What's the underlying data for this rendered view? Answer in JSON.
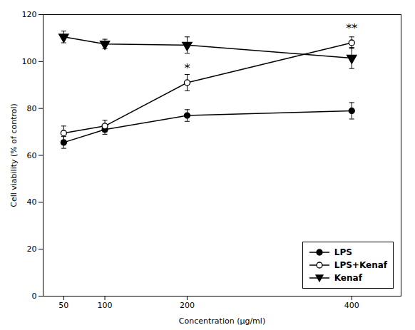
{
  "chart_data": {
    "type": "line",
    "x": [
      50,
      100,
      200,
      400
    ],
    "series": [
      {
        "name": "LPS",
        "values": [
          65.5,
          71.0,
          77.0,
          79.0
        ],
        "errors": [
          2.5,
          2.0,
          2.5,
          3.5
        ],
        "marker": "circle",
        "color": "#000000"
      },
      {
        "name": "LPS+Kenaf",
        "values": [
          69.5,
          72.5,
          91.0,
          108.0
        ],
        "errors": [
          3.0,
          2.5,
          3.5,
          2.5
        ],
        "marker": "open-circle",
        "color": "#000000"
      },
      {
        "name": "Kenaf",
        "values": [
          110.5,
          107.5,
          107.0,
          101.5
        ],
        "errors": [
          2.5,
          2.0,
          3.5,
          4.5
        ],
        "marker": "triangle-down",
        "color": "#000000"
      }
    ],
    "annotations": [
      {
        "text": "*",
        "x": 200,
        "y": 95.5
      },
      {
        "text": "**",
        "x": 400,
        "y": 112.5
      }
    ],
    "xlabel": "Concentration (μg/ml)",
    "ylabel": "Cell viability (% of control)",
    "xlim": [
      25,
      460
    ],
    "xticks": [
      50,
      100,
      200,
      400
    ],
    "ylim": [
      0,
      120
    ],
    "yticks": [
      0,
      20,
      40,
      60,
      80,
      100,
      120
    ],
    "legend": "lower right",
    "grid": false
  }
}
